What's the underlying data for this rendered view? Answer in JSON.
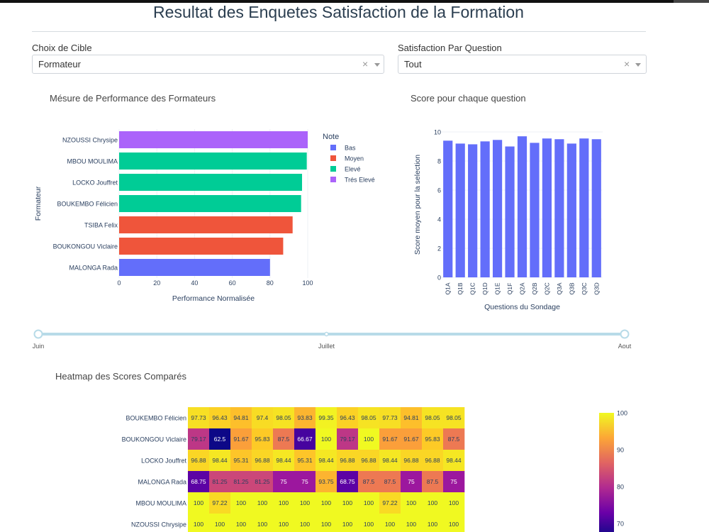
{
  "page": {
    "title": "Resultat des Enquetes Satisfaction de la Formation"
  },
  "filters": {
    "cible_label": "Choix de Cible",
    "cible_value": "Formateur",
    "question_label": "Satisfaction Par Question",
    "question_value": "Tout",
    "clear_symbol": "×"
  },
  "slider": {
    "marks": [
      "Juin",
      "Juillet",
      "Aout"
    ],
    "selected_range": [
      "Juin",
      "Aout"
    ]
  },
  "colors": {
    "Bas": "#636efa",
    "Moyen": "#ef553b",
    "Elevé": "#00cc96",
    "Trés Elevé": "#ab63fa",
    "slider": "#b8dbe8"
  },
  "chart_data": [
    {
      "type": "bar",
      "orientation": "horizontal",
      "title": "Mésure de Performance des Formateurs",
      "xlabel": "Performance Normalisée",
      "ylabel": "Formateur",
      "xlim": [
        0,
        100
      ],
      "xticks": [
        0,
        20,
        40,
        60,
        80,
        100
      ],
      "legend_title": "Note",
      "legend_position": "right",
      "legend": [
        "Bas",
        "Moyen",
        "Elevé",
        "Trés Elevé"
      ],
      "categories": [
        "NZOUSSI Chrysipe",
        "MBOU MOULIMA",
        "LOCKO Jouffret",
        "BOUKEMBO Félicien",
        "TSIBA Felix",
        "BOUKONGOU Viclaire",
        "MALONGA Rada"
      ],
      "values": [
        100,
        99.5,
        97,
        96.5,
        92,
        87,
        80
      ],
      "notes": [
        "Trés Elevé",
        "Elevé",
        "Elevé",
        "Elevé",
        "Moyen",
        "Moyen",
        "Bas"
      ]
    },
    {
      "type": "bar",
      "title": "Score pour chaque question",
      "xlabel": "Questions du Sondage",
      "ylabel": "Score moyen pour la selection",
      "ylim": [
        0,
        10
      ],
      "yticks": [
        0,
        2,
        4,
        6,
        8,
        10
      ],
      "categories": [
        "Q1A",
        "Q1B",
        "Q1C",
        "Q1D",
        "Q1E",
        "Q1F",
        "Q2A",
        "Q2B",
        "Q2C",
        "Q3A",
        "Q3B",
        "Q3C",
        "Q3D"
      ],
      "values": [
        9.4,
        9.2,
        9.15,
        9.35,
        9.45,
        9.0,
        9.7,
        9.25,
        9.55,
        9.5,
        9.2,
        9.55,
        9.5
      ]
    },
    {
      "type": "heatmap",
      "title": "Heatmap des Scores Comparés",
      "rows": [
        "BOUKEMBO Félicien",
        "BOUKONGOU Viclaire",
        "LOCKO Jouffret",
        "MALONGA Rada",
        "MBOU MOULIMA",
        "NZOUSSI Chrysipe"
      ],
      "values": [
        [
          "97.73",
          "96.43",
          "94.81",
          "97.4",
          "98.05",
          "93.83",
          "99.35",
          "96.43",
          "98.05",
          "97.73",
          "94.81",
          "98.05",
          "98.05"
        ],
        [
          "79.17",
          "62.5",
          "91.67",
          "95.83",
          "87.5",
          "66.67",
          "100",
          "79.17",
          "100",
          "91.67",
          "91.67",
          "95.83",
          "87.5"
        ],
        [
          "96.88",
          "98.44",
          "95.31",
          "96.88",
          "98.44",
          "95.31",
          "98.44",
          "96.88",
          "96.88",
          "98.44",
          "96.88",
          "96.88",
          "98.44"
        ],
        [
          "68.75",
          "81.25",
          "81.25",
          "81.25",
          "75",
          "75",
          "93.75",
          "68.75",
          "87.5",
          "87.5",
          "75",
          "87.5",
          "75"
        ],
        [
          "100",
          "97.22",
          "100",
          "100",
          "100",
          "100",
          "100",
          "100",
          "100",
          "97.22",
          "100",
          "100",
          "100"
        ],
        [
          "100",
          "100",
          "100",
          "100",
          "100",
          "100",
          "100",
          "100",
          "100",
          "100",
          "100",
          "100",
          "100"
        ]
      ],
      "colorbar_ticks": [
        100,
        90,
        80,
        70
      ],
      "colorscale": "Plasma"
    }
  ]
}
